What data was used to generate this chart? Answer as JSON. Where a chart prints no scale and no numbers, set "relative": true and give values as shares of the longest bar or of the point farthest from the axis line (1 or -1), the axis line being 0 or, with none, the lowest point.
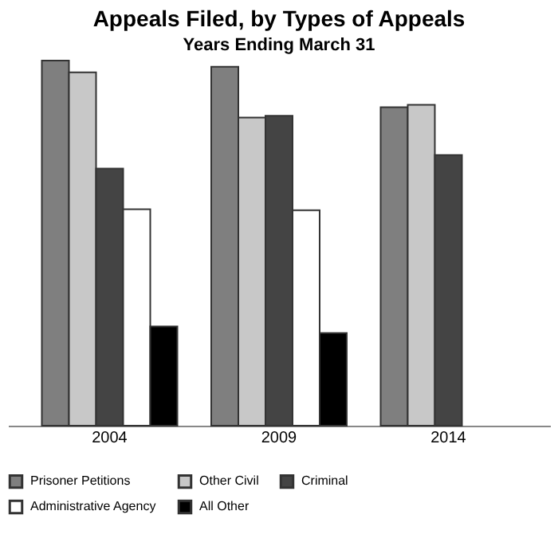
{
  "chart_data": {
    "type": "bar",
    "title": "Appeals Filed, by Types of Appeals",
    "subtitle": "Years Ending March 31",
    "categories": [
      "2004",
      "2009",
      "2014"
    ],
    "relative": true,
    "grid": false,
    "legend": "bottom",
    "series": [
      {
        "name": "Prisoner Petitions",
        "color": "#7f7f7f",
        "values": [
          1,
          0.983,
          0.872
        ]
      },
      {
        "name": "Other Civil",
        "color": "#c8c8c8",
        "values": [
          0.968,
          0.844,
          0.879
        ]
      },
      {
        "name": "Criminal",
        "color": "#444444",
        "values": [
          0.704,
          0.849,
          0.741
        ]
      },
      {
        "name": "Administrative Agency",
        "color": "#ffffff",
        "values": [
          0.593,
          0.59,
          null
        ]
      },
      {
        "name": "All Other",
        "color": "#000000",
        "values": [
          0.272,
          0.254,
          null
        ]
      }
    ]
  }
}
